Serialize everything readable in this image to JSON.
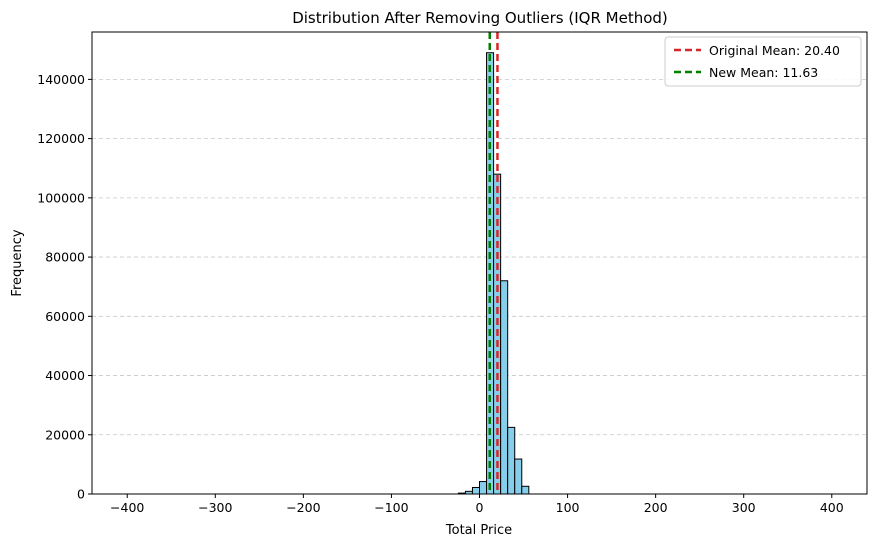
{
  "chart_data": {
    "type": "histogram",
    "title": "Distribution After Removing Outliers (IQR Method)",
    "xlabel": "Total Price",
    "ylabel": "Frequency",
    "xlim": [
      -440,
      440
    ],
    "ylim": [
      0,
      156000
    ],
    "xticks": [
      -400,
      -300,
      -200,
      -100,
      0,
      100,
      200,
      300,
      400
    ],
    "yticks": [
      0,
      20000,
      40000,
      60000,
      80000,
      100000,
      120000,
      140000
    ],
    "grid": "y-dashed",
    "bar_color": "#87CEEB",
    "bar_edge_color": "#000000",
    "bin_width": 8,
    "bins": [
      {
        "x0": -24,
        "x1": -16,
        "value": 300
      },
      {
        "x0": -16,
        "x1": -8,
        "value": 900
      },
      {
        "x0": -8,
        "x1": 0,
        "value": 2200
      },
      {
        "x0": 0,
        "x1": 8,
        "value": 4200
      },
      {
        "x0": 8,
        "x1": 16,
        "value": 149000
      },
      {
        "x0": 16,
        "x1": 24,
        "value": 108000
      },
      {
        "x0": 24,
        "x1": 32,
        "value": 72000
      },
      {
        "x0": 32,
        "x1": 40,
        "value": 22500
      },
      {
        "x0": 40,
        "x1": 48,
        "value": 11800
      },
      {
        "x0": 48,
        "x1": 56,
        "value": 2600
      }
    ],
    "vlines": [
      {
        "label": "Original Mean: 20.40",
        "x": 20.4,
        "color": "#d62728"
      },
      {
        "label": "New Mean: 11.63",
        "x": 11.63,
        "color": "#008000"
      }
    ],
    "legend_position": "top-right"
  }
}
